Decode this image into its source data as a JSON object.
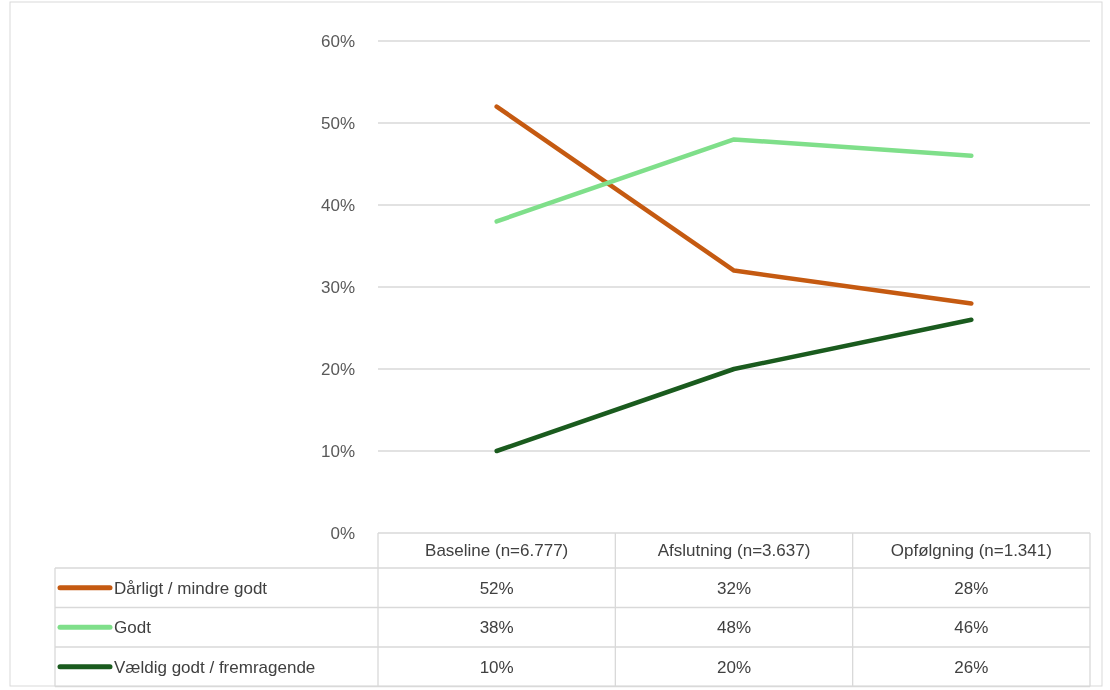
{
  "chart_data": {
    "type": "line",
    "categories": [
      "Baseline (n=6.777)",
      "Afslutning (n=3.637)",
      "Opfølgning (n=1.341)"
    ],
    "series": [
      {
        "name": "Dårligt / mindre godt",
        "color": "#c55a11",
        "values": [
          52,
          32,
          28
        ],
        "value_labels": [
          "52%",
          "32%",
          "28%"
        ]
      },
      {
        "name": "Godt",
        "color": "#7fdf8a",
        "values": [
          38,
          48,
          46
        ],
        "value_labels": [
          "38%",
          "48%",
          "46%"
        ]
      },
      {
        "name": "Vældig godt / fremragende",
        "color": "#1a5b1e",
        "values": [
          10,
          20,
          26
        ],
        "value_labels": [
          "10%",
          "20%",
          "26%"
        ]
      }
    ],
    "ylim": [
      0,
      60
    ],
    "yticks": [
      {
        "value": 0,
        "label": "0%"
      },
      {
        "value": 10,
        "label": "10%"
      },
      {
        "value": 20,
        "label": "20%"
      },
      {
        "value": 30,
        "label": "30%"
      },
      {
        "value": 40,
        "label": "40%"
      },
      {
        "value": 50,
        "label": "50%"
      },
      {
        "value": 60,
        "label": "60%"
      }
    ],
    "grid": "y",
    "legend": "bottom",
    "marker": "none",
    "line_style": "solid"
  }
}
